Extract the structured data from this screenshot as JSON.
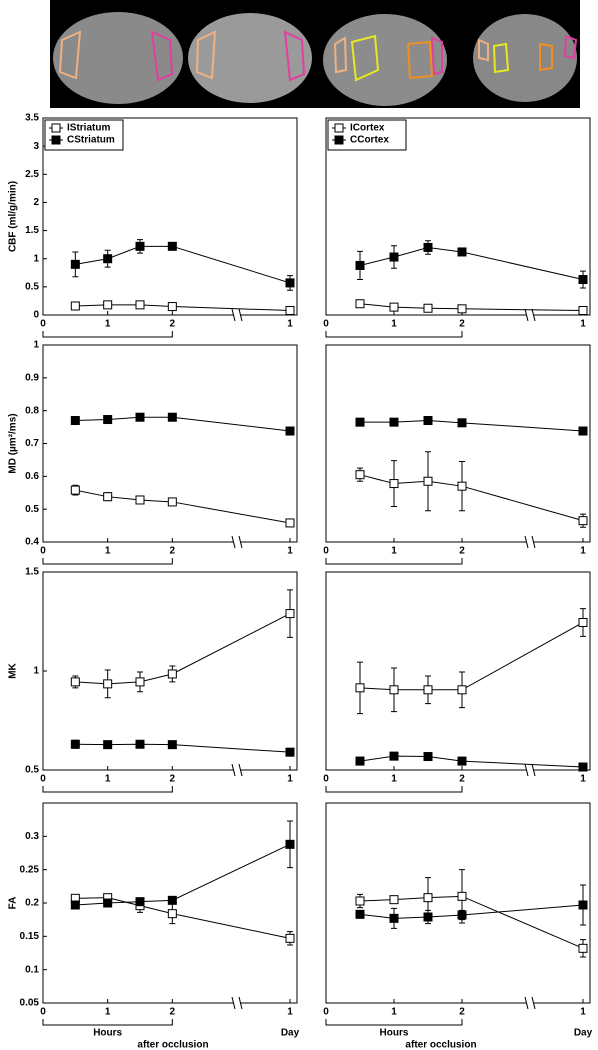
{
  "chart_data": [
    {
      "type": "line",
      "ylabel": "CBF (ml/g/min)",
      "legend": "upper left",
      "x": [
        0.5,
        1,
        1.5,
        2
      ],
      "day_x": [
        1
      ],
      "xlim": [
        0,
        3
      ],
      "xticks": [
        0,
        1,
        2
      ],
      "day_xticks": [
        1
      ],
      "ylim": [
        0,
        3.5
      ],
      "yticks": [
        0,
        0.5,
        1,
        1.5,
        2,
        2.5,
        3,
        3.5
      ],
      "series": [
        {
          "name": "IStriatum",
          "marker": "open",
          "color": "#000000",
          "values": [
            0.16,
            0.18,
            0.18,
            0.15
          ],
          "errors": [
            0.04,
            0.03,
            0.03,
            0.03
          ],
          "day_values": [
            0.08
          ],
          "day_errors": [
            0.04
          ]
        },
        {
          "name": "CStriatum",
          "marker": "filled",
          "color": "#000000",
          "values": [
            0.9,
            1.0,
            1.22,
            1.22
          ],
          "errors": [
            0.22,
            0.15,
            0.12,
            0.04
          ],
          "day_values": [
            0.57
          ],
          "day_errors": [
            0.13
          ]
        }
      ]
    },
    {
      "type": "line",
      "legend": "upper left",
      "x": [
        0.5,
        1,
        1.5,
        2
      ],
      "day_x": [
        1
      ],
      "xlim": [
        0,
        3
      ],
      "xticks": [
        0,
        1,
        2
      ],
      "day_xticks": [
        1
      ],
      "ylim": [
        0,
        3.5
      ],
      "series": [
        {
          "name": "ICortex",
          "marker": "open",
          "color": "#000000",
          "values": [
            0.2,
            0.14,
            0.12,
            0.11
          ],
          "errors": [
            0.06,
            0.04,
            0.03,
            0.02
          ],
          "day_values": [
            0.08
          ],
          "day_errors": [
            0.03
          ]
        },
        {
          "name": "CCortex",
          "marker": "filled",
          "color": "#000000",
          "values": [
            0.88,
            1.03,
            1.2,
            1.12
          ],
          "errors": [
            0.25,
            0.2,
            0.12,
            0.03
          ],
          "day_values": [
            0.63
          ],
          "day_errors": [
            0.15
          ]
        }
      ]
    },
    {
      "type": "line",
      "ylabel": "MD (µm²/ms)",
      "x": [
        0.5,
        1,
        1.5,
        2
      ],
      "day_x": [
        1
      ],
      "xlim": [
        0,
        3
      ],
      "xticks": [
        0,
        1,
        2
      ],
      "day_xticks": [
        1
      ],
      "ylim": [
        0.4,
        1
      ],
      "yticks": [
        0.4,
        0.5,
        0.6,
        0.7,
        0.8,
        0.9,
        1
      ],
      "series": [
        {
          "marker": "open",
          "color": "#000000",
          "values": [
            0.558,
            0.538,
            0.528,
            0.522
          ],
          "errors": [
            0.015,
            0.012,
            0.008,
            0.01
          ],
          "day_values": [
            0.458
          ],
          "day_errors": [
            0.01
          ]
        },
        {
          "marker": "filled",
          "color": "#000000",
          "values": [
            0.77,
            0.773,
            0.78,
            0.78
          ],
          "errors": [
            0.01,
            0.005,
            0.01,
            0.01
          ],
          "day_values": [
            0.738
          ],
          "day_errors": [
            0.005
          ]
        }
      ]
    },
    {
      "type": "line",
      "x": [
        0.5,
        1,
        1.5,
        2
      ],
      "day_x": [
        1
      ],
      "xlim": [
        0,
        3
      ],
      "xticks": [
        0,
        1,
        2
      ],
      "day_xticks": [
        1
      ],
      "ylim": [
        0.4,
        1
      ],
      "series": [
        {
          "marker": "open",
          "color": "#000000",
          "values": [
            0.605,
            0.578,
            0.585,
            0.57
          ],
          "errors": [
            0.02,
            0.07,
            0.09,
            0.075
          ],
          "day_values": [
            0.465
          ],
          "day_errors": [
            0.02
          ]
        },
        {
          "marker": "filled",
          "color": "#000000",
          "values": [
            0.765,
            0.765,
            0.77,
            0.763
          ],
          "errors": [
            0.005,
            0.005,
            0.005,
            0.005
          ],
          "day_values": [
            0.738
          ],
          "day_errors": [
            0.01
          ]
        }
      ]
    },
    {
      "type": "line",
      "ylabel": "MK",
      "x": [
        0.5,
        1,
        1.5,
        2
      ],
      "day_x": [
        1
      ],
      "xlim": [
        0,
        3
      ],
      "xticks": [
        0,
        1,
        2
      ],
      "day_xticks": [
        1
      ],
      "ylim": [
        0.5,
        1.5
      ],
      "yticks": [
        0.5,
        1,
        1.5
      ],
      "series": [
        {
          "marker": "open",
          "color": "#000000",
          "values": [
            0.945,
            0.935,
            0.945,
            0.985
          ],
          "errors": [
            0.03,
            0.07,
            0.05,
            0.04
          ],
          "day_values": [
            1.29
          ],
          "day_errors": [
            0.12
          ]
        },
        {
          "marker": "filled",
          "color": "#000000",
          "values": [
            0.63,
            0.628,
            0.63,
            0.628
          ],
          "errors": [
            0.02,
            0.01,
            0.01,
            0.01
          ],
          "day_values": [
            0.59
          ],
          "day_errors": [
            0.015
          ]
        }
      ]
    },
    {
      "type": "line",
      "x": [
        0.5,
        1,
        1.5,
        2
      ],
      "day_x": [
        1
      ],
      "xlim": [
        0,
        3
      ],
      "xticks": [
        0,
        1,
        2
      ],
      "day_xticks": [
        1
      ],
      "ylim": [
        0.5,
        1.5
      ],
      "series": [
        {
          "marker": "open",
          "color": "#000000",
          "values": [
            0.915,
            0.905,
            0.905,
            0.905
          ],
          "errors": [
            0.13,
            0.11,
            0.07,
            0.09
          ],
          "day_values": [
            1.245
          ],
          "day_errors": [
            0.07
          ]
        },
        {
          "marker": "filled",
          "color": "#000000",
          "values": [
            0.545,
            0.57,
            0.568,
            0.545
          ],
          "errors": [
            0.02,
            0.015,
            0.015,
            0.01
          ],
          "day_values": [
            0.515
          ],
          "day_errors": [
            0.01
          ]
        }
      ]
    },
    {
      "type": "line",
      "ylabel": "FA",
      "xlabel_hours": "Hours",
      "xlabel_day": "Day",
      "xlabel": "after occlusion",
      "x": [
        0.5,
        1,
        1.5,
        2
      ],
      "day_x": [
        1
      ],
      "xlim": [
        0,
        3
      ],
      "xticks": [
        0,
        1,
        2
      ],
      "day_xticks": [
        1
      ],
      "ylim": [
        0.05,
        0.35
      ],
      "yticks": [
        0.05,
        0.1,
        0.15,
        0.2,
        0.25,
        0.3
      ],
      "series": [
        {
          "marker": "open",
          "color": "#000000",
          "values": [
            0.207,
            0.208,
            0.196,
            0.184
          ],
          "errors": [
            0.005,
            0.005,
            0.01,
            0.015
          ],
          "day_values": [
            0.147
          ],
          "day_errors": [
            0.01
          ]
        },
        {
          "marker": "filled",
          "color": "#000000",
          "values": [
            0.197,
            0.2,
            0.202,
            0.204
          ],
          "errors": [
            0.005,
            0.005,
            0.005,
            0.005
          ],
          "day_values": [
            0.288
          ],
          "day_errors": [
            0.035
          ]
        }
      ]
    },
    {
      "type": "line",
      "xlabel_hours": "Hours",
      "xlabel_day": "Day",
      "xlabel": "after occlusion",
      "x": [
        0.5,
        1,
        1.5,
        2
      ],
      "day_x": [
        1
      ],
      "xlim": [
        0,
        3
      ],
      "xticks": [
        0,
        1,
        2
      ],
      "day_xticks": [
        1
      ],
      "ylim": [
        0.05,
        0.35
      ],
      "series": [
        {
          "marker": "open",
          "color": "#000000",
          "values": [
            0.203,
            0.205,
            0.208,
            0.21
          ],
          "errors": [
            0.01,
            0.005,
            0.03,
            0.04
          ],
          "day_values": [
            0.132
          ],
          "day_errors": [
            0.013
          ]
        },
        {
          "marker": "filled",
          "color": "#000000",
          "values": [
            0.183,
            0.177,
            0.179,
            0.182
          ],
          "errors": [
            0.005,
            0.015,
            0.01,
            0.007
          ],
          "day_values": [
            0.197
          ],
          "day_errors": [
            0.03
          ]
        }
      ]
    }
  ]
}
